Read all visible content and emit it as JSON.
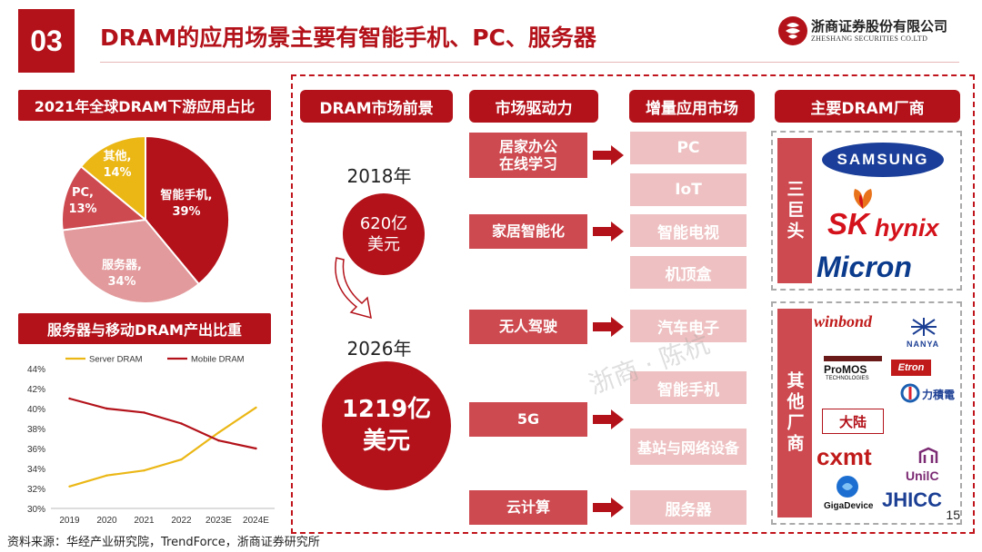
{
  "header": {
    "number": "03",
    "title": "DRAM的应用场景主要有智能手机、PC、服务器",
    "brand_cn": "浙商证券股份有限公司",
    "brand_en": "ZHESHANG SECURITIES CO.LTD"
  },
  "left": {
    "pie_title": "2021年全球DRAM下游应用占比",
    "trend_title": "服务器与移动DRAM产出比重"
  },
  "pie_labels": [
    {
      "name": "智能手机,",
      "pct": "39%"
    },
    {
      "name": "服务器,",
      "pct": "34%"
    },
    {
      "name": "PC,",
      "pct": "13%"
    },
    {
      "name": "其他,",
      "pct": "14%"
    }
  ],
  "columns": {
    "prospect": "DRAM市场前景",
    "drivers": "市场驱动力",
    "markets": "增量应用市场",
    "vendors": "主要DRAM厂商"
  },
  "prospect": {
    "year1": "2018年",
    "value1_line1": "620亿",
    "value1_line2": "美元",
    "year2": "2026年",
    "value2_line1": "1219亿",
    "value2_line2": "美元"
  },
  "drivers": {
    "d1_line1": "居家办公",
    "d1_line2": "在线学习",
    "d2": "家居智能化",
    "d3": "无人驾驶",
    "d4": "5G",
    "d5": "云计算"
  },
  "markets": {
    "m1": "PC",
    "m2": "IoT",
    "m3": "智能电视",
    "m4": "机顶盒",
    "m5": "汽车电子",
    "m6": "智能手机",
    "m7": "基站与网络设备",
    "m8": "服务器"
  },
  "vendors": {
    "group1_label": "三巨头",
    "group2_label": "其他厂商",
    "samsung": "SAMSUNG",
    "sk": "SK",
    "hynix": "hynix",
    "micron": "Micron",
    "winbond": "winbond",
    "nanya": "NANYA",
    "promos": "ProMOS",
    "promos_sub": "TECHNOLOGIES",
    "etron": "Etron",
    "psmc": "力積電",
    "mainland": "大陆",
    "cxmt": "cxmt",
    "unilc": "UnilC",
    "gigadevice": "GigaDevice",
    "jhicc": "JHICC"
  },
  "watermark": "浙商 · 陈杭",
  "footer": {
    "source": "资料来源：华经产业研究院，TrendForce，浙商证券研究所",
    "page": "15"
  },
  "colors": {
    "primary_red": "#b3121a",
    "medium_red": "#cd4a50",
    "light_pink": "#eec0c1",
    "pie_pink": "#e29a9c",
    "pie_yellow": "#ebb715",
    "server_line": "#ebb715",
    "mobile_line": "#b3121a"
  },
  "chart_data": [
    {
      "type": "pie",
      "title": "2021年全球DRAM下游应用占比",
      "labels": [
        "智能手机",
        "服务器",
        "PC",
        "其他"
      ],
      "values": [
        39,
        34,
        13,
        14
      ],
      "colors": [
        "#b3121a",
        "#e29a9c",
        "#cd4a50",
        "#ebb715"
      ]
    },
    {
      "type": "line",
      "title": "服务器与移动DRAM产出比重",
      "categories": [
        "2019",
        "2020",
        "2021",
        "2022",
        "2023E",
        "2024E"
      ],
      "series": [
        {
          "name": "Server DRAM",
          "color": "#ebb715",
          "values": [
            32.2,
            33.3,
            33.8,
            34.9,
            37.6,
            40.1
          ]
        },
        {
          "name": "Mobile DRAM",
          "color": "#b3121a",
          "values": [
            41.0,
            40.0,
            39.6,
            38.5,
            36.8,
            36.0
          ]
        }
      ],
      "yticks": [
        "30%",
        "32%",
        "34%",
        "36%",
        "38%",
        "40%",
        "42%",
        "44%"
      ],
      "ylim": [
        30,
        44
      ],
      "legend": "top",
      "grid": false
    }
  ]
}
